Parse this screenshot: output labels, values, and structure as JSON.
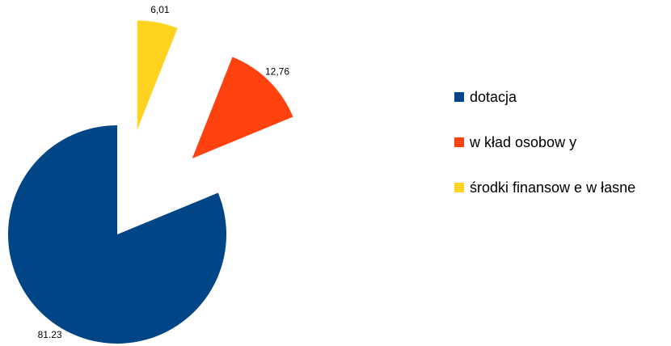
{
  "chart_data": {
    "type": "pie",
    "categories": [
      "dotacja",
      "w kład osobow y",
      "środki finansow e w łasne"
    ],
    "values": [
      81.23,
      12.76,
      6.01
    ],
    "value_labels": [
      "81.23",
      "12,76",
      "6,01"
    ],
    "colors": [
      "#004586",
      "#ff420e",
      "#ffd320"
    ],
    "legend": "right"
  }
}
